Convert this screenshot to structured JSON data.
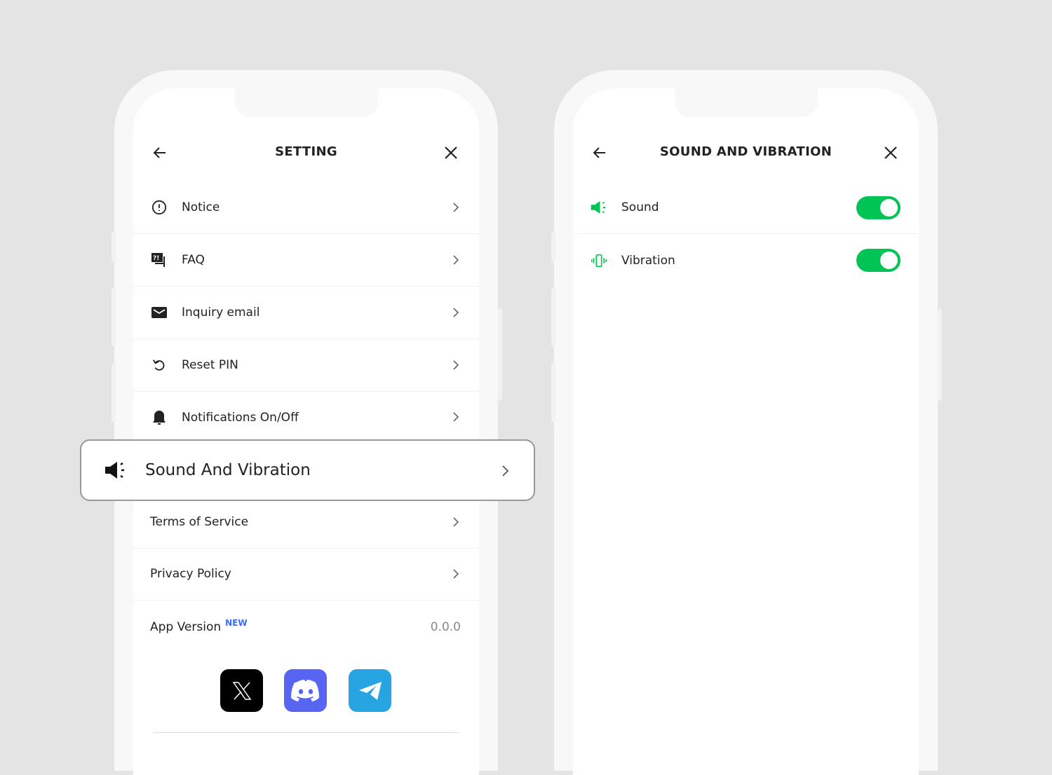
{
  "left_screen": {
    "title": "SETTING",
    "items": [
      {
        "label": "Notice",
        "icon": "alert-circle-icon"
      },
      {
        "label": "FAQ",
        "icon": "faq-icon"
      },
      {
        "label": "Inquiry email",
        "icon": "mail-icon"
      },
      {
        "label": "Reset PIN",
        "icon": "reset-icon"
      },
      {
        "label": "Notifications On/Off",
        "icon": "bell-icon"
      },
      {
        "label": "Sound And Vibration",
        "icon": "speaker-icon"
      },
      {
        "label": "Terms of Service"
      },
      {
        "label": "Privacy Policy"
      }
    ],
    "app_version": {
      "label": "App Version",
      "badge": "NEW",
      "value": "0.0.0"
    },
    "social": [
      "x-icon",
      "discord-icon",
      "telegram-icon"
    ]
  },
  "right_screen": {
    "title": "SOUND AND VIBRATION",
    "items": [
      {
        "label": "Sound",
        "icon": "speaker-icon",
        "enabled": true
      },
      {
        "label": "Vibration",
        "icon": "vibration-icon",
        "enabled": true
      }
    ]
  },
  "colors": {
    "accent_green": "#00c455",
    "new_badge": "#3b6cf0",
    "discord": "#5865f2",
    "telegram": "#27a4e2"
  }
}
